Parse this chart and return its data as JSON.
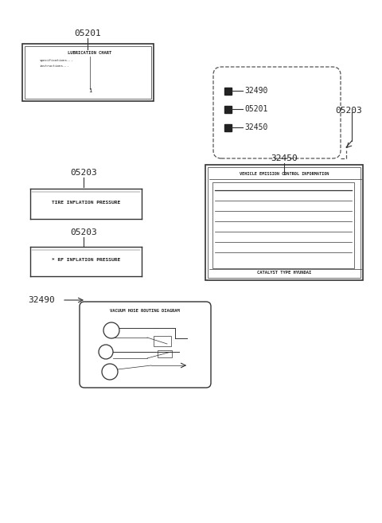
{
  "bg_color": "#ffffff",
  "line_color": "#333333",
  "text_color": "#222222",
  "labels": {
    "lube_chart": {
      "part": "05201",
      "text": "LUBRICATION CHART"
    },
    "tire_pressure": {
      "part": "05203",
      "text": "TIRE INFLATION PRESSURE"
    },
    "oil_pressure": {
      "part": "05203",
      "text": "* RF INFLATION PRESSURE"
    },
    "vacuum_hose": {
      "part": "32490",
      "text": "VACUUM HOSE ROUTING DIAGRAM"
    },
    "legend_box": {
      "parts": [
        "32490",
        "05201",
        "32450"
      ],
      "part_label": "05203"
    },
    "emission_control": {
      "part": "32450",
      "text": "VEHICLE EMISSION CONTROL INFORMATION",
      "subtext": "CATALYST TYPE HYUNDAI"
    }
  }
}
